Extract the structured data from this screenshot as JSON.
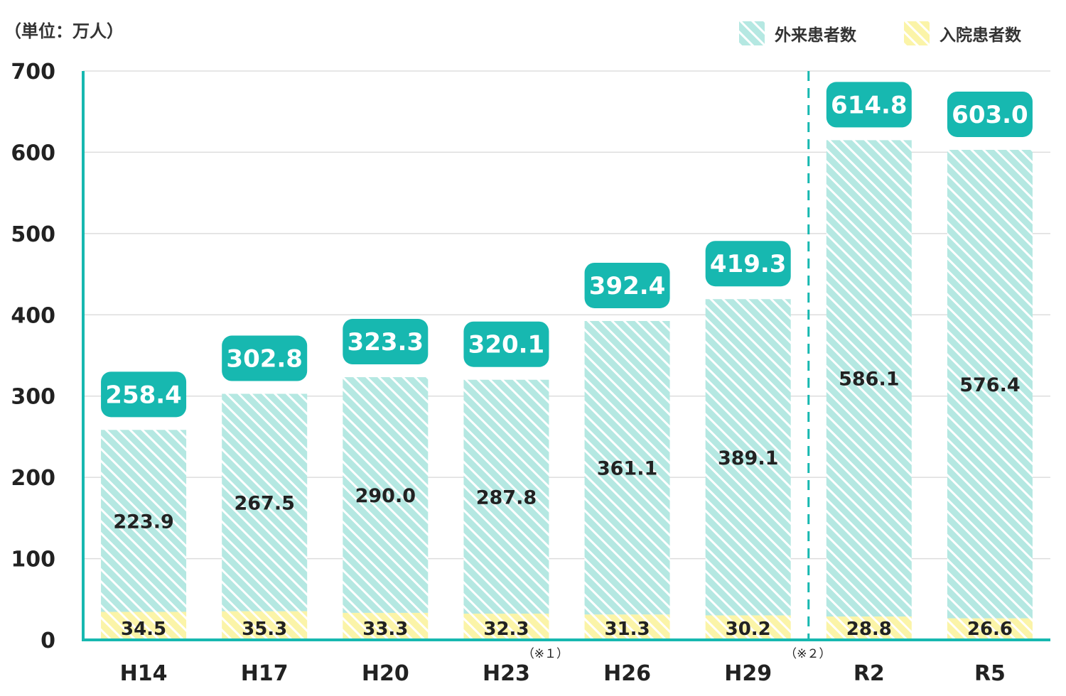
{
  "unit_label": "（単位：万人）",
  "legend": {
    "outpatient": "外来患者数",
    "inpatient": "入院患者数"
  },
  "colors": {
    "outpatient_fill": "#b5e8e2",
    "inpatient_fill": "#fbf4a8",
    "stripe": "#ffffff",
    "accent": "#17b8b0",
    "grid": "#dddddd",
    "text": "#222222"
  },
  "chart_data": {
    "type": "bar",
    "stacked": true,
    "categories": [
      "H14",
      "H17",
      "H20",
      "H23",
      "H26",
      "H29",
      "R2",
      "R5"
    ],
    "category_notes": {
      "H23": "（※１）",
      "R2": "（※２）"
    },
    "series": [
      {
        "name": "入院患者数",
        "values": [
          34.5,
          35.3,
          33.3,
          32.3,
          31.3,
          30.2,
          28.8,
          26.6
        ]
      },
      {
        "name": "外来患者数",
        "values": [
          223.9,
          267.5,
          290.0,
          287.8,
          361.1,
          389.1,
          586.1,
          576.4
        ]
      }
    ],
    "totals": [
      "258.4",
      "302.8",
      "323.3",
      "320.1",
      "392.4",
      "419.3",
      "614.8",
      "603.0"
    ],
    "y_ticks": [
      0,
      100,
      200,
      300,
      400,
      500,
      600,
      700
    ],
    "ylim": [
      0,
      700
    ],
    "grid": true,
    "legend_position": "top-right",
    "divider_between": [
      "H29",
      "R2"
    ]
  }
}
